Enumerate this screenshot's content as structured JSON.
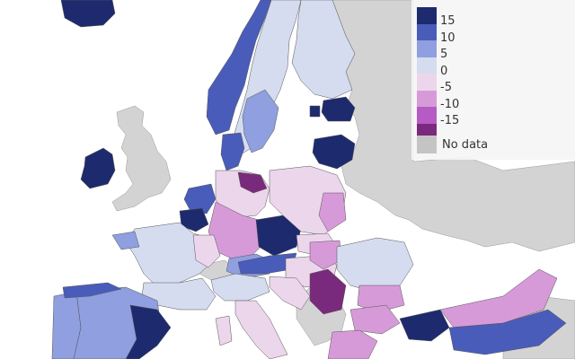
{
  "legend": {
    "classes": [
      {
        "label": "15",
        "color": "#1e2a6e"
      },
      {
        "label": "10",
        "color": "#4a5cba"
      },
      {
        "label": "5",
        "color": "#8f9fdf"
      },
      {
        "label": "0",
        "color": "#d5dcf0"
      },
      {
        "label": "-5",
        "color": "#ecd6ec"
      },
      {
        "label": "-10",
        "color": "#d79ad9"
      },
      {
        "label": "-15",
        "color": "#b65bc4"
      },
      {
        "label": "",
        "color": "#7a2a7d"
      }
    ],
    "no_data": {
      "label": "No data",
      "color": "#c4c4c4"
    }
  },
  "colors": {
    "sea": "#ffffff",
    "land_no_data": "#d3d3d3",
    "border": "#555555"
  }
}
